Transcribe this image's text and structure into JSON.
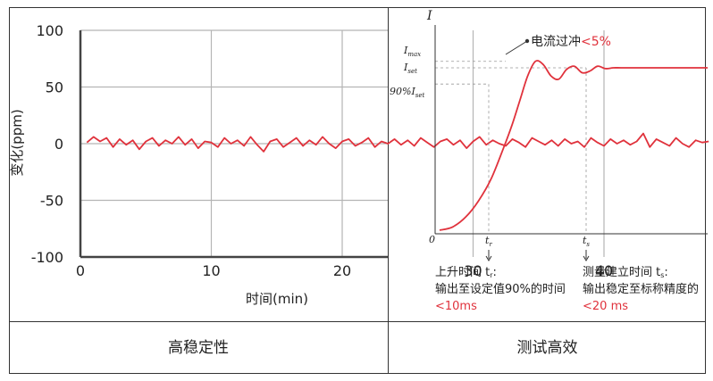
{
  "chart_data": [
    {
      "type": "line",
      "title": "",
      "xlabel": "时间(min)",
      "ylabel": "变化(ppm)",
      "xlim": [
        0,
        48
      ],
      "ylim": [
        -100,
        100
      ],
      "xticks": [
        "0",
        "10",
        "20",
        "30",
        "40"
      ],
      "yticks": [
        "100",
        "50",
        "0",
        "-50",
        "-100"
      ],
      "grid": true,
      "series": [
        {
          "color": "#e0323c",
          "x": [
            0.5,
            1.0,
            1.5,
            2.0,
            2.5,
            3.0,
            3.5,
            4.0,
            4.5,
            5.0,
            5.5,
            6.0,
            6.5,
            7.0,
            7.5,
            8.0,
            8.5,
            9.0,
            9.5,
            10.0,
            10.5,
            11.0,
            11.5,
            12.0,
            12.5,
            13.0,
            13.5,
            14.0,
            14.5,
            15.0,
            15.5,
            16.0,
            16.5,
            17.0,
            17.5,
            18.0,
            18.5,
            19.0,
            19.5,
            20.0,
            20.5,
            21.0,
            21.5,
            22.0,
            22.5,
            23.0,
            23.5,
            24.0,
            24.5,
            25.0,
            25.5,
            26.0,
            26.5,
            27.0,
            27.5,
            28.0,
            28.5,
            29.0,
            29.5,
            30.0,
            30.5,
            31.0,
            31.5,
            32.0,
            32.5,
            33.0,
            33.5,
            34.0,
            34.5,
            35.0,
            35.5,
            36.0,
            36.5,
            37.0,
            37.5,
            38.0,
            38.5,
            39.0,
            39.5,
            40.0,
            40.5,
            41.0,
            41.5,
            42.0,
            42.5,
            43.0,
            43.5,
            44.0,
            44.5,
            45.0,
            45.5,
            46.0,
            46.5,
            47.0,
            47.5,
            48.0
          ],
          "values": [
            1,
            6,
            2,
            5,
            -3,
            4,
            -1,
            3,
            -5,
            2,
            5,
            -2,
            3,
            0,
            6,
            -1,
            4,
            -4,
            2,
            1,
            -3,
            5,
            0,
            3,
            -2,
            6,
            -1,
            -7,
            2,
            4,
            -3,
            1,
            5,
            -2,
            3,
            -1,
            6,
            0,
            -4,
            2,
            4,
            -2,
            1,
            5,
            -3,
            2,
            0,
            4,
            -1,
            3,
            -2,
            5,
            1,
            -3,
            2,
            4,
            -1,
            3,
            -4,
            2,
            6,
            -1,
            3,
            0,
            -2,
            4,
            1,
            -3,
            5,
            2,
            -1,
            3,
            -2,
            4,
            0,
            2,
            -3,
            5,
            1,
            -2,
            4,
            0,
            3,
            -1,
            2,
            9,
            -3,
            4,
            1,
            -2,
            5,
            0,
            -3,
            3,
            1,
            2
          ]
        }
      ]
    },
    {
      "type": "line",
      "title": "",
      "ylabel": "I",
      "origin_label": "0",
      "y_markers": {
        "max": "I",
        "max_sub": "max",
        "set": "I",
        "set_sub": "set",
        "ninety": "90%I",
        "ninety_sub": "set"
      },
      "x_markers": {
        "rise": "t",
        "rise_sub": "r",
        "settle": "t",
        "settle_sub": "s"
      },
      "overshoot_label_main": "电流过冲",
      "overshoot_label_value": "<5%",
      "rise_note": [
        "上升时间 t",
        "r",
        ":",
        "输出至设定值90%的时间",
        "<10ms"
      ],
      "settle_note": [
        "测量建立时间 t",
        "s",
        ":",
        "输出稳定至标称精度的",
        "<20 ms"
      ],
      "color": "#e0323c",
      "series": [
        {
          "x": [
            0,
            5,
            10,
            15,
            20,
            25,
            28,
            31,
            34,
            37,
            40,
            43,
            46,
            49,
            52,
            55,
            58,
            61,
            64,
            67,
            70,
            75,
            80,
            90,
            100
          ],
          "values": [
            0,
            2,
            8,
            18,
            32,
            52,
            65,
            80,
            95,
            104,
            102,
            95,
            93,
            99,
            101,
            97,
            98,
            101,
            99.5,
            100,
            100,
            100,
            100,
            100,
            100
          ]
        }
      ]
    }
  ],
  "captions": {
    "left": "高稳定性",
    "right": "测试高效"
  }
}
